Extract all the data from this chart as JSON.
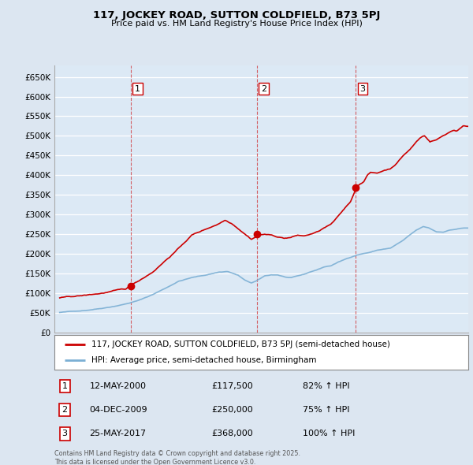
{
  "title": "117, JOCKEY ROAD, SUTTON COLDFIELD, B73 5PJ",
  "subtitle": "Price paid vs. HM Land Registry's House Price Index (HPI)",
  "legend_line1": "117, JOCKEY ROAD, SUTTON COLDFIELD, B73 5PJ (semi-detached house)",
  "legend_line2": "HPI: Average price, semi-detached house, Birmingham",
  "footnote": "Contains HM Land Registry data © Crown copyright and database right 2025.\nThis data is licensed under the Open Government Licence v3.0.",
  "sale_color": "#cc0000",
  "hpi_color": "#7bafd4",
  "bg_color": "#dce6f1",
  "plot_bg": "#dce9f5",
  "ylim": [
    0,
    680000
  ],
  "yticks": [
    0,
    50000,
    100000,
    150000,
    200000,
    250000,
    300000,
    350000,
    400000,
    450000,
    500000,
    550000,
    600000,
    650000
  ],
  "ytick_labels": [
    "£0",
    "£50K",
    "£100K",
    "£150K",
    "£200K",
    "£250K",
    "£300K",
    "£350K",
    "£400K",
    "£450K",
    "£500K",
    "£550K",
    "£600K",
    "£650K"
  ],
  "sales": [
    {
      "year": 2000.37,
      "price": 117500,
      "label": "1"
    },
    {
      "year": 2009.92,
      "price": 250000,
      "label": "2"
    },
    {
      "year": 2017.4,
      "price": 368000,
      "label": "3"
    }
  ],
  "sale_vlines": [
    2000.37,
    2009.92,
    2017.4
  ],
  "table_rows": [
    [
      "1",
      "12-MAY-2000",
      "£117,500",
      "82% ↑ HPI"
    ],
    [
      "2",
      "04-DEC-2009",
      "£250,000",
      "75% ↑ HPI"
    ],
    [
      "3",
      "25-MAY-2017",
      "£368,000",
      "100% ↑ HPI"
    ]
  ]
}
